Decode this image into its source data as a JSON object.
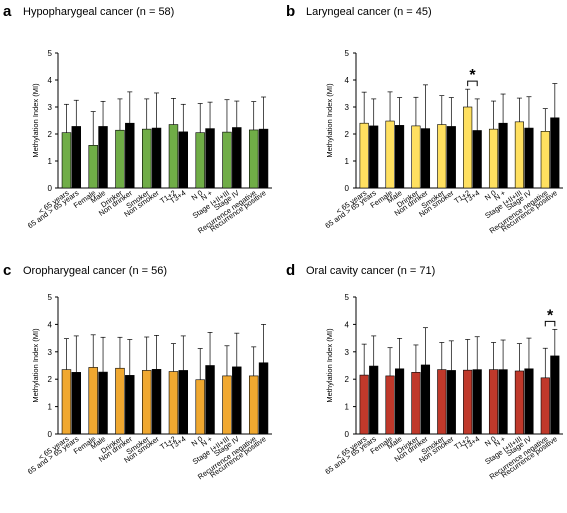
{
  "chart_data": [
    {
      "type": "bar",
      "panel_label": "a",
      "title": "Hypopharygeal cancer (n = 58)",
      "ylabel": "Methylation Index (MI)",
      "ylim": [
        0,
        5
      ],
      "yticks": [
        "0",
        "1",
        "2",
        "3",
        "4",
        "5"
      ],
      "colors": [
        "#70ad47",
        "#000000"
      ],
      "grid": false,
      "groups": [
        {
          "labels": [
            "< 65 years",
            "65 and > 65 years"
          ],
          "values": [
            2.05,
            2.28
          ],
          "errors": [
            1.05,
            0.97
          ]
        },
        {
          "labels": [
            "Female",
            "Male"
          ],
          "values": [
            1.58,
            2.28
          ],
          "errors": [
            1.25,
            0.93
          ]
        },
        {
          "labels": [
            "Drinker",
            "Non drinker"
          ],
          "values": [
            2.14,
            2.4
          ],
          "errors": [
            1.16,
            1.16
          ]
        },
        {
          "labels": [
            "Smoker",
            "Non smoker"
          ],
          "values": [
            2.18,
            2.22
          ],
          "errors": [
            1.12,
            1.3
          ]
        },
        {
          "labels": [
            "T1+2",
            "T3+4"
          ],
          "values": [
            2.35,
            2.08
          ],
          "errors": [
            0.97,
            1.02
          ]
        },
        {
          "labels": [
            "N 0",
            "N +"
          ],
          "values": [
            2.05,
            2.2
          ],
          "errors": [
            1.08,
            0.98
          ]
        },
        {
          "labels": [
            "Stage I+II+III",
            "Stage IV"
          ],
          "values": [
            2.07,
            2.24
          ],
          "errors": [
            1.2,
            0.98
          ]
        },
        {
          "labels": [
            "Recurrence negative",
            "Recurrence positive"
          ],
          "values": [
            2.15,
            2.18
          ],
          "errors": [
            1.05,
            1.19
          ]
        }
      ],
      "significance": []
    },
    {
      "type": "bar",
      "panel_label": "b",
      "title": "Laryngeal cancer (n = 45)",
      "ylabel": "Methylation Index (MI)",
      "ylim": [
        0,
        5
      ],
      "yticks": [
        "0",
        "1",
        "2",
        "3",
        "4",
        "5"
      ],
      "colors": [
        "#ffe060",
        "#000000"
      ],
      "grid": false,
      "groups": [
        {
          "labels": [
            "< 65 years",
            "65 and > 65 years"
          ],
          "values": [
            2.4,
            2.3
          ],
          "errors": [
            1.15,
            1.0
          ]
        },
        {
          "labels": [
            "Female",
            "Male"
          ],
          "values": [
            2.48,
            2.32
          ],
          "errors": [
            1.08,
            1.03
          ]
        },
        {
          "labels": [
            "Drinker",
            "Non drinker"
          ],
          "values": [
            2.3,
            2.2
          ],
          "errors": [
            1.06,
            1.62
          ]
        },
        {
          "labels": [
            "Smoker",
            "Non smoker"
          ],
          "values": [
            2.35,
            2.28
          ],
          "errors": [
            1.07,
            1.07
          ]
        },
        {
          "labels": [
            "T1+2",
            "T3+4"
          ],
          "values": [
            3.0,
            2.13
          ],
          "errors": [
            0.66,
            1.17
          ]
        },
        {
          "labels": [
            "N 0",
            "N +"
          ],
          "values": [
            2.18,
            2.4
          ],
          "errors": [
            1.04,
            1.08
          ]
        },
        {
          "labels": [
            "Stage I+II+III",
            "Stage IV"
          ],
          "values": [
            2.45,
            2.22
          ],
          "errors": [
            0.88,
            1.16
          ]
        },
        {
          "labels": [
            "Recurrence negative",
            "Recurrence positive"
          ],
          "values": [
            2.1,
            2.6
          ],
          "errors": [
            0.84,
            1.27
          ]
        }
      ],
      "significance": [
        {
          "group": 4,
          "label": "*"
        }
      ]
    },
    {
      "type": "bar",
      "panel_label": "c",
      "title": "Oropharygeal cancer (n = 56)",
      "ylabel": "Methylation Index (MI)",
      "ylim": [
        0,
        5
      ],
      "yticks": [
        "0",
        "1",
        "2",
        "3",
        "4",
        "5"
      ],
      "colors": [
        "#f0a830",
        "#000000"
      ],
      "grid": false,
      "groups": [
        {
          "labels": [
            "< 65 years",
            "65 and > 65 years"
          ],
          "values": [
            2.35,
            2.25
          ],
          "errors": [
            1.13,
            1.33
          ]
        },
        {
          "labels": [
            "Female",
            "Male"
          ],
          "values": [
            2.43,
            2.26
          ],
          "errors": [
            1.19,
            1.27
          ]
        },
        {
          "labels": [
            "Drinker",
            "Non drinker"
          ],
          "values": [
            2.4,
            2.14
          ],
          "errors": [
            1.13,
            1.31
          ]
        },
        {
          "labels": [
            "Smoker",
            "Non smoker"
          ],
          "values": [
            2.32,
            2.36
          ],
          "errors": [
            1.22,
            1.24
          ]
        },
        {
          "labels": [
            "T1+2",
            "T3+4"
          ],
          "values": [
            2.28,
            2.32
          ],
          "errors": [
            1.02,
            1.26
          ]
        },
        {
          "labels": [
            "N 0",
            "N +"
          ],
          "values": [
            1.98,
            2.5
          ],
          "errors": [
            1.14,
            1.21
          ]
        },
        {
          "labels": [
            "Stage I+II+III",
            "Stage IV"
          ],
          "values": [
            2.12,
            2.45
          ],
          "errors": [
            1.1,
            1.23
          ]
        },
        {
          "labels": [
            "Recurrence negative",
            "Recurrence positive"
          ],
          "values": [
            2.12,
            2.6
          ],
          "errors": [
            1.06,
            1.4
          ]
        }
      ],
      "significance": []
    },
    {
      "type": "bar",
      "panel_label": "d",
      "title": "Oral cavity cancer (n = 71)",
      "ylabel": "Methylation Index (MI)",
      "ylim": [
        0,
        5
      ],
      "yticks": [
        "0",
        "1",
        "2",
        "3",
        "4",
        "5"
      ],
      "colors": [
        "#c0392b",
        "#000000"
      ],
      "grid": false,
      "groups": [
        {
          "labels": [
            "< 65 years",
            "65 and > 65 years"
          ],
          "values": [
            2.15,
            2.48
          ],
          "errors": [
            1.13,
            1.1
          ]
        },
        {
          "labels": [
            "Female",
            "Male"
          ],
          "values": [
            2.12,
            2.38
          ],
          "errors": [
            1.03,
            1.11
          ]
        },
        {
          "labels": [
            "Drinker",
            "Non drinker"
          ],
          "values": [
            2.25,
            2.52
          ],
          "errors": [
            1.0,
            1.36
          ]
        },
        {
          "labels": [
            "Smoker",
            "Non smoker"
          ],
          "values": [
            2.35,
            2.32
          ],
          "errors": [
            0.99,
            1.08
          ]
        },
        {
          "labels": [
            "T1+2",
            "T3+4"
          ],
          "values": [
            2.33,
            2.35
          ],
          "errors": [
            1.12,
            1.2
          ]
        },
        {
          "labels": [
            "N 0",
            "N +"
          ],
          "values": [
            2.35,
            2.35
          ],
          "errors": [
            0.99,
            1.08
          ]
        },
        {
          "labels": [
            "Stage I+II+III",
            "Stage IV"
          ],
          "values": [
            2.3,
            2.38
          ],
          "errors": [
            1.0,
            1.12
          ]
        },
        {
          "labels": [
            "Recurrence negative",
            "Recurrence positive"
          ],
          "values": [
            2.05,
            2.85
          ],
          "errors": [
            1.08,
            0.97
          ]
        }
      ],
      "significance": [
        {
          "group": 7,
          "label": "*"
        }
      ]
    }
  ]
}
